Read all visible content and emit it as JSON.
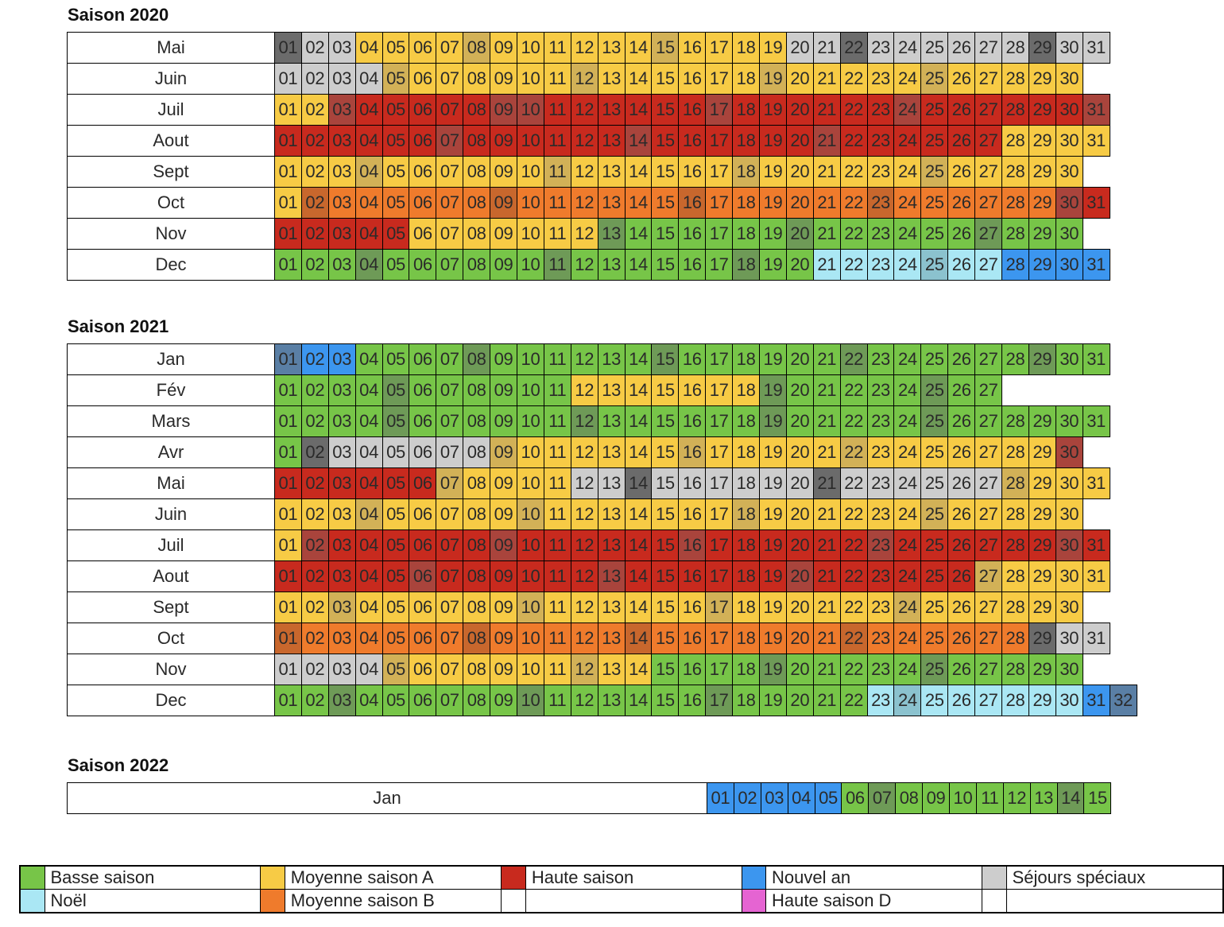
{
  "colors": {
    "B": "#77c548",
    "b": "#6e9a57",
    "M": "#f7cb45",
    "m": "#d2b157",
    "H": "#c82a1e",
    "h": "#a9443c",
    "O": "#ef7b2c",
    "o": "#c8672d",
    "N": "#3c96ef",
    "n": "#5a7fa5",
    "S": "#cdcdcd",
    "s": "#6b6b6b",
    "C": "#aae7f4",
    "c": "#8bc2ce",
    "D": "#e564d2"
  },
  "seasons": [
    {
      "title": "Saison 2020",
      "months": [
        {
          "name": "Mai",
          "codes": "sSSMMMMmMMMMMMmMMMMSSsSSSSSSsSS"
        },
        {
          "name": "Juin",
          "codes": "SSSSmMMMMMMmMMMMMMmMMMMMmMMMMM"
        },
        {
          "name": "Juil",
          "codes": "MMhHHHHHhhHHHHHHhHHHHHHhHHHHHHh"
        },
        {
          "name": "Aout",
          "codes": "HHHHHHhHHHHHHhHHHHHHhHHHHHHMMMM"
        },
        {
          "name": "Sept",
          "codes": "MMMmMMMMMMmMMMMMMmMMMMMMmMMMMM"
        },
        {
          "name": "Oct",
          "codes": "MoOOOOOOoOOOOOOoOOOOOOoOOOOOOhH"
        },
        {
          "name": "Nov",
          "codes": "HHHHHMMMMMMMbBBBBBBbBBBBBBbBBB"
        },
        {
          "name": "Dec",
          "codes": "BBBbBBBBBBbBBBBBBbBBCCCCcCCNNNN"
        }
      ]
    },
    {
      "title": "Saison 2021",
      "months": [
        {
          "name": "Jan",
          "codes": "nNNBBBBbBBBBBBbBBBBBBbBBBBBBbBB"
        },
        {
          "name": "Fév",
          "codes": "BBBBbBBBBBBMMMMMMMbBBBBBbBB"
        },
        {
          "name": "Mars",
          "codes": "BBBBbBBBBBBbBBBBBBbBBBBBbBBBBBB"
        },
        {
          "name": "Avr",
          "codes": "BsSSSSSSmMMMMMMmMMMMMmMMMMMMMh"
        },
        {
          "name": "Mai",
          "codes": "HHHHHHmMMMMSSsSSSSSSsSSSSSSmMMM"
        },
        {
          "name": "Juin",
          "codes": "MMMmMMMMMmMMMMMMMmMMMMMMmMMMMM"
        },
        {
          "name": "Juil",
          "codes": "MhHHHHHHhHHHHHHhHHHHHHhHHHHHHhH"
        },
        {
          "name": "Aout",
          "codes": "HHHHHhHHHHHHhHHHHHHhHHHHHHmMMMM"
        },
        {
          "name": "Sept",
          "codes": "MMmMMMMMMmMMMMMMmMMMMMMmMMMMMM"
        },
        {
          "name": "Oct",
          "codes": "oOOOOOOoOOOOOoOOOOOOOoOOOOOOsSS"
        },
        {
          "name": "Nov",
          "codes": "SSSSmMMMMMMmMMBBBBbBBBBBbBBBBB"
        },
        {
          "name": "Dec",
          "codes": "BBbBBBBBBbBBBBBBbBBBBBCcCCCCCCNn"
        }
      ]
    },
    {
      "title": "Saison 2022",
      "months": [
        {
          "name": "Jan",
          "start": 1,
          "codes": "NNNNNBbBBBBBBbB",
          "wide": true
        }
      ]
    }
  ],
  "legend": [
    [
      {
        "color": "#77c548",
        "label": "Basse saison"
      },
      {
        "color": "#f7cb45",
        "label": "Moyenne saison A"
      },
      {
        "color": "#c82a1e",
        "label": "Haute saison"
      },
      {
        "color": "#3c96ef",
        "label": "Nouvel an"
      },
      {
        "color": "#cdcdcd",
        "label": "Séjours spéciaux"
      }
    ],
    [
      {
        "color": "#aae7f4",
        "label": "Noël"
      },
      {
        "color": "#ef7b2c",
        "label": "Moyenne saison B"
      },
      {
        "color": "#ffffff",
        "label": ""
      },
      {
        "color": "#e564d2",
        "label": "Haute saison D"
      },
      {
        "color": "#ffffff",
        "label": ""
      }
    ]
  ]
}
